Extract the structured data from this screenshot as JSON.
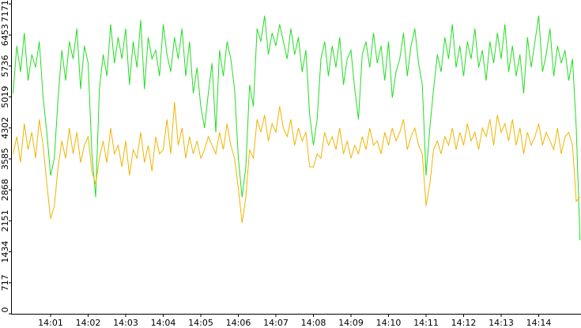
{
  "chart_data": {
    "type": "line",
    "categories": [
      null,
      null,
      null,
      null,
      null,
      null,
      null,
      null,
      null,
      null,
      "14:01",
      null,
      null,
      null,
      null,
      null,
      null,
      null,
      null,
      null,
      "14:02",
      null,
      null,
      null,
      null,
      null,
      null,
      null,
      null,
      null,
      "14:03",
      null,
      null,
      null,
      null,
      null,
      null,
      null,
      null,
      null,
      "14:04",
      null,
      null,
      null,
      null,
      null,
      null,
      null,
      null,
      null,
      "14:05",
      null,
      null,
      null,
      null,
      null,
      null,
      null,
      null,
      null,
      "14:06",
      null,
      null,
      null,
      null,
      null,
      null,
      null,
      null,
      null,
      "14:07",
      null,
      null,
      null,
      null,
      null,
      null,
      null,
      null,
      null,
      "14:08",
      null,
      null,
      null,
      null,
      null,
      null,
      null,
      null,
      null,
      "14:09",
      null,
      null,
      null,
      null,
      null,
      null,
      null,
      null,
      null,
      "14:10",
      null,
      null,
      null,
      null,
      null,
      null,
      null,
      null,
      null,
      "14:11",
      null,
      null,
      null,
      null,
      null,
      null,
      null,
      null,
      null,
      "14:12",
      null,
      null,
      null,
      null,
      null,
      null,
      null,
      null,
      null,
      "14:13",
      null,
      null,
      null,
      null,
      null,
      null,
      null,
      null,
      null,
      "14:14",
      null,
      null,
      null,
      null,
      null,
      null,
      null,
      null,
      null,
      null,
      null
    ],
    "series": [
      {
        "color": "#22dd22",
        "values": [
          5100,
          6200,
          5600,
          6500,
          5400,
          6000,
          5700,
          6300,
          5000,
          4200,
          3200,
          3600,
          5000,
          6100,
          5400,
          6300,
          5900,
          6600,
          5200,
          6200,
          5800,
          3700,
          2700,
          5200,
          6000,
          5500,
          6700,
          5800,
          6400,
          5900,
          6600,
          5300,
          6300,
          5700,
          6800,
          5200,
          6400,
          5900,
          6100,
          5500,
          6700,
          6000,
          5600,
          6400,
          5900,
          6600,
          5500,
          6300,
          5100,
          5700,
          4800,
          4300,
          5100,
          5800,
          4200,
          6100,
          5500,
          6300,
          5900,
          5200,
          3600,
          2700,
          3400,
          5300,
          4800,
          6600,
          6300,
          6900,
          6000,
          6500,
          6200,
          6700,
          6300,
          5900,
          6600,
          6000,
          6400,
          5600,
          6100,
          4600,
          3900,
          4500,
          5900,
          6300,
          5500,
          6200,
          5700,
          6400,
          5300,
          5900,
          6100,
          5200,
          4500,
          6000,
          6300,
          5700,
          6500,
          5800,
          6200,
          5400,
          6300,
          5000,
          5600,
          5900,
          6500,
          5500,
          6200,
          6600,
          5800,
          5300,
          3200,
          4300,
          5200,
          6000,
          5600,
          6400,
          5900,
          6700,
          5700,
          6200,
          5500,
          6300,
          5900,
          6600,
          5700,
          6100,
          5400,
          6300,
          5800,
          6500,
          5900,
          6700,
          5600,
          6200,
          5500,
          6000,
          5100,
          6400,
          5700,
          6300,
          6900,
          5600,
          6000,
          6600,
          5500,
          6200,
          5800,
          6100,
          5400,
          5900,
          4300,
          1700
        ]
      },
      {
        "color": "#f0b400",
        "values": [
          3700,
          4100,
          3500,
          4400,
          3800,
          4200,
          3600,
          4500,
          3900,
          3000,
          2200,
          2500,
          3400,
          4000,
          3600,
          4300,
          3700,
          4200,
          3500,
          3900,
          4100,
          3300,
          3000,
          3600,
          4000,
          3500,
          4300,
          3700,
          3900,
          3400,
          4000,
          3200,
          3800,
          3600,
          4200,
          3500,
          3900,
          3300,
          4100,
          3700,
          3800,
          4500,
          3700,
          4900,
          3900,
          4300,
          3600,
          4100,
          3700,
          4000,
          3600,
          3800,
          4100,
          3900,
          3700,
          4200,
          3800,
          4400,
          3900,
          3600,
          2900,
          2100,
          2700,
          3800,
          3600,
          4500,
          4200,
          4600,
          4000,
          4400,
          4200,
          4800,
          4300,
          4100,
          4500,
          3900,
          4300,
          4000,
          4200,
          3400,
          3400,
          3700,
          3600,
          4200,
          3900,
          4100,
          3800,
          4300,
          3700,
          4000,
          3600,
          3900,
          3700,
          4100,
          3800,
          4300,
          3900,
          4000,
          3700,
          4200,
          3900,
          4300,
          4000,
          4200,
          4500,
          3800,
          4100,
          4300,
          3900,
          3700,
          2500,
          3000,
          3800,
          4000,
          3700,
          4100,
          3900,
          4300,
          3800,
          4200,
          3900,
          4400,
          4000,
          4200,
          3800,
          4300,
          4100,
          4500,
          3900,
          4600,
          4200,
          4400,
          4000,
          4500,
          3900,
          4300,
          3700,
          4200,
          3900,
          4100,
          4400,
          3900,
          4200,
          4000,
          3800,
          4300,
          3700,
          4100,
          4200,
          3900,
          2600,
          2700
        ]
      }
    ],
    "ylim": [
      0,
      7171
    ],
    "yticks": [
      0,
      717,
      1434,
      2151,
      2868,
      3585,
      4302,
      5019,
      5736,
      6453,
      7171
    ]
  }
}
